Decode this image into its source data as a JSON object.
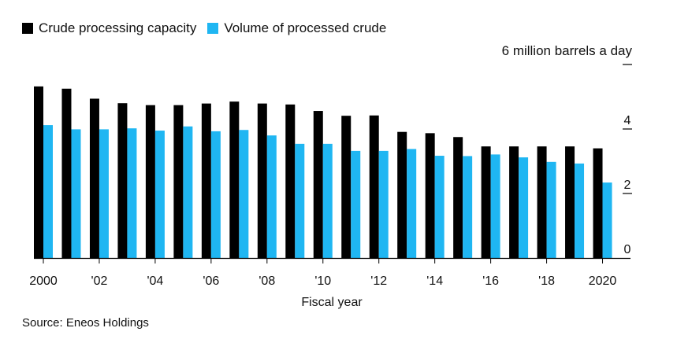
{
  "legend": {
    "items": [
      {
        "label": "Crude processing capacity",
        "color": "#000000"
      },
      {
        "label": "Volume of processed crude",
        "color": "#1fb6f2"
      }
    ]
  },
  "source": "Source: Eneos Holdings",
  "chart_data": {
    "type": "bar",
    "title": "",
    "xlabel": "Fiscal year",
    "ylabel": "",
    "unit_label": "6 million barrels a day",
    "ylim": [
      0,
      6
    ],
    "yticks": [
      0,
      2,
      4,
      6
    ],
    "ytick_labels": [
      "0",
      "2",
      "4",
      ""
    ],
    "grid": false,
    "legend_position": "top-left",
    "categories": [
      "2000",
      "2001",
      "2002",
      "2003",
      "2004",
      "2005",
      "2006",
      "2007",
      "2008",
      "2009",
      "2010",
      "2011",
      "2012",
      "2013",
      "2014",
      "2015",
      "2016",
      "2017",
      "2018",
      "2019",
      "2020"
    ],
    "xtick_labels": [
      {
        "index": 0,
        "label": "2000"
      },
      {
        "index": 2,
        "label": "'02"
      },
      {
        "index": 4,
        "label": "'04"
      },
      {
        "index": 6,
        "label": "'06"
      },
      {
        "index": 8,
        "label": "'08"
      },
      {
        "index": 10,
        "label": "'10"
      },
      {
        "index": 12,
        "label": "'12"
      },
      {
        "index": 14,
        "label": "'14"
      },
      {
        "index": 16,
        "label": "'16"
      },
      {
        "index": 18,
        "label": "'18"
      },
      {
        "index": 20,
        "label": "2020"
      }
    ],
    "series": [
      {
        "name": "Crude processing capacity",
        "color": "#000000",
        "values": [
          5.32,
          5.25,
          4.94,
          4.8,
          4.74,
          4.74,
          4.79,
          4.85,
          4.79,
          4.76,
          4.56,
          4.41,
          4.42,
          3.91,
          3.87,
          3.75,
          3.46,
          3.46,
          3.46,
          3.46,
          3.4
        ]
      },
      {
        "name": "Volume of processed crude",
        "color": "#1fb6f2",
        "values": [
          4.12,
          3.99,
          3.99,
          4.02,
          3.95,
          4.08,
          3.93,
          3.97,
          3.8,
          3.54,
          3.54,
          3.32,
          3.32,
          3.38,
          3.17,
          3.16,
          3.21,
          3.12,
          2.98,
          2.93,
          2.34
        ]
      }
    ]
  }
}
